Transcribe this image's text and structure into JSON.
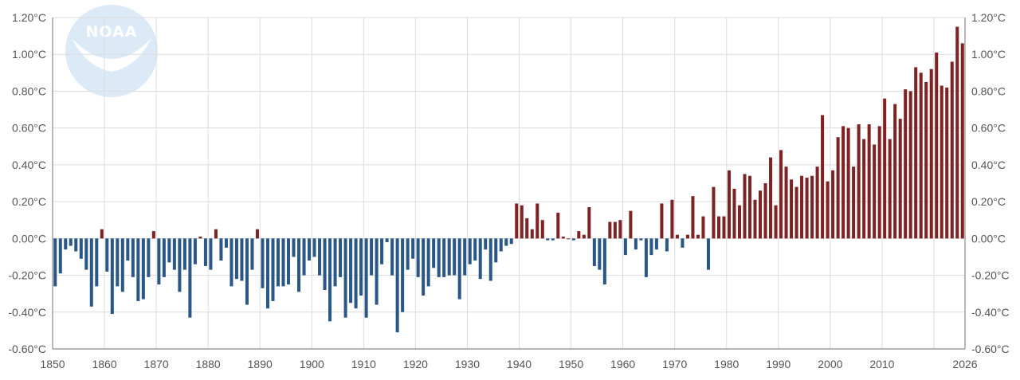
{
  "chart_data": {
    "type": "bar",
    "title": "",
    "xlabel": "",
    "ylabel": "",
    "unit": "°C",
    "ylim": [
      -0.6,
      1.2
    ],
    "xlim": [
      1850,
      2026
    ],
    "y_ticks": [
      "1.20°C",
      "1.00°C",
      "0.80°C",
      "0.60°C",
      "0.40°C",
      "0.20°C",
      "0.00°C",
      "-0.20°C",
      "-0.40°C",
      "-0.60°C"
    ],
    "x_ticks": [
      "1850",
      "1860",
      "1870",
      "1880",
      "1890",
      "1900",
      "1910",
      "1920",
      "1930",
      "1940",
      "1950",
      "1960",
      "1970",
      "1980",
      "1990",
      "2000",
      "2010",
      "2026"
    ],
    "grid": true,
    "positive_color": "#7e2323",
    "negative_color": "#2b5787",
    "logo_text": "NOAA",
    "years": [
      1850,
      1851,
      1852,
      1853,
      1854,
      1855,
      1856,
      1857,
      1858,
      1859,
      1860,
      1861,
      1862,
      1863,
      1864,
      1865,
      1866,
      1867,
      1868,
      1869,
      1870,
      1871,
      1872,
      1873,
      1874,
      1875,
      1876,
      1877,
      1878,
      1879,
      1880,
      1881,
      1882,
      1883,
      1884,
      1885,
      1886,
      1887,
      1888,
      1889,
      1890,
      1891,
      1892,
      1893,
      1894,
      1895,
      1896,
      1897,
      1898,
      1899,
      1900,
      1901,
      1902,
      1903,
      1904,
      1905,
      1906,
      1907,
      1908,
      1909,
      1910,
      1911,
      1912,
      1913,
      1914,
      1915,
      1916,
      1917,
      1918,
      1919,
      1920,
      1921,
      1922,
      1923,
      1924,
      1925,
      1926,
      1927,
      1928,
      1929,
      1930,
      1931,
      1932,
      1933,
      1934,
      1935,
      1936,
      1937,
      1938,
      1939,
      1940,
      1941,
      1942,
      1943,
      1944,
      1945,
      1946,
      1947,
      1948,
      1949,
      1950,
      1951,
      1952,
      1953,
      1954,
      1955,
      1956,
      1957,
      1958,
      1959,
      1960,
      1961,
      1962,
      1963,
      1964,
      1965,
      1966,
      1967,
      1968,
      1969,
      1970,
      1971,
      1972,
      1973,
      1974,
      1975,
      1976,
      1977,
      1978,
      1979,
      1980,
      1981,
      1982,
      1983,
      1984,
      1985,
      1986,
      1987,
      1988,
      1989,
      1990,
      1991,
      1992,
      1993,
      1994,
      1995,
      1996,
      1997,
      1998,
      1999,
      2000,
      2001,
      2002,
      2003,
      2004,
      2005,
      2006,
      2007,
      2008,
      2009,
      2010,
      2011,
      2012,
      2013,
      2014,
      2015,
      2016,
      2017,
      2018,
      2019,
      2020,
      2021,
      2022,
      2023,
      2024,
      2025
    ],
    "values": [
      -0.26,
      -0.19,
      -0.06,
      -0.04,
      -0.07,
      -0.11,
      -0.17,
      -0.37,
      -0.26,
      0.05,
      -0.18,
      -0.41,
      -0.26,
      -0.29,
      -0.12,
      -0.21,
      -0.34,
      -0.33,
      -0.21,
      0.04,
      -0.25,
      -0.21,
      -0.13,
      -0.17,
      -0.29,
      -0.17,
      -0.43,
      -0.14,
      0.01,
      -0.15,
      -0.17,
      0.05,
      -0.12,
      -0.05,
      -0.26,
      -0.22,
      -0.23,
      -0.36,
      -0.17,
      0.05,
      -0.27,
      -0.38,
      -0.34,
      -0.26,
      -0.26,
      -0.25,
      -0.1,
      -0.29,
      -0.2,
      -0.12,
      -0.1,
      -0.2,
      -0.28,
      -0.45,
      -0.26,
      -0.21,
      -0.43,
      -0.35,
      -0.38,
      -0.31,
      -0.43,
      -0.2,
      -0.36,
      -0.14,
      -0.02,
      -0.2,
      -0.51,
      -0.4,
      -0.17,
      -0.11,
      -0.21,
      -0.31,
      -0.26,
      -0.16,
      -0.21,
      -0.21,
      -0.2,
      -0.2,
      -0.33,
      -0.2,
      -0.14,
      -0.12,
      -0.22,
      -0.06,
      -0.23,
      -0.13,
      -0.07,
      -0.04,
      -0.03,
      0.19,
      0.18,
      0.11,
      0.05,
      0.19,
      0.1,
      -0.01,
      -0.01,
      0.14,
      0.01,
      0.0,
      -0.01,
      0.04,
      0.02,
      0.17,
      -0.15,
      -0.17,
      -0.25,
      0.09,
      0.09,
      0.1,
      -0.09,
      0.15,
      -0.06,
      -0.01,
      -0.21,
      -0.09,
      -0.06,
      0.19,
      -0.07,
      0.21,
      0.02,
      -0.05,
      0.02,
      0.23,
      0.02,
      0.12,
      -0.17,
      0.28,
      0.12,
      0.12,
      0.37,
      0.27,
      0.18,
      0.35,
      0.34,
      0.21,
      0.26,
      0.3,
      0.44,
      0.18,
      0.48,
      0.39,
      0.32,
      0.28,
      0.34,
      0.33,
      0.34,
      0.39,
      0.67,
      0.31,
      0.37,
      0.55,
      0.61,
      0.6,
      0.39,
      0.62,
      0.54,
      0.62,
      0.51,
      0.61,
      0.76,
      0.54,
      0.73,
      0.65,
      0.81,
      0.8,
      0.93,
      0.9,
      0.85,
      0.92,
      1.01,
      0.83,
      0.82,
      0.96,
      1.15,
      1.06
    ]
  }
}
